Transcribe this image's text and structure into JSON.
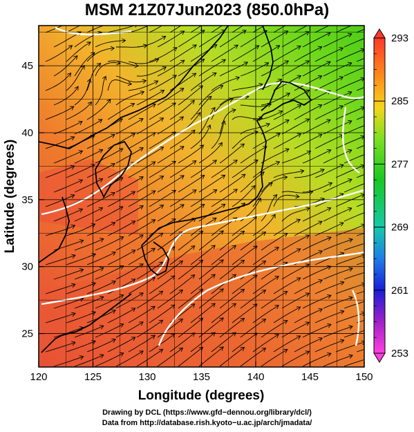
{
  "title": "MSM 21Z07Jun2023 (850.0hPa)",
  "map": {
    "lon_range": [
      120,
      150
    ],
    "lat_range": [
      22.5,
      48
    ],
    "xlabel": "Longitude (degrees)",
    "ylabel": "Latitude  (degrees)",
    "x_ticks": [
      "120",
      "125",
      "130",
      "135",
      "140",
      "145",
      "150"
    ],
    "y_ticks": [
      "25",
      "30",
      "35",
      "40",
      "45"
    ],
    "grid": true,
    "field": "temperature shaded with streamlines",
    "colors": {
      "high": "#e5413a",
      "mid": "#f0a028",
      "low_mid": "#9be31e",
      "low": "#43cd14",
      "coastline": "#000000",
      "contour": "#ffffff"
    }
  },
  "colorbar": {
    "labels": [
      "293",
      "285",
      "277",
      "269",
      "261",
      "253"
    ],
    "range": [
      253,
      293
    ],
    "colors": [
      "#ff3a2a",
      "#ff8a1a",
      "#f6d51a",
      "#7de020",
      "#18c822",
      "#16c9a9",
      "#1f7ee8",
      "#1a1ed8",
      "#a020c8",
      "#ff40e0"
    ]
  },
  "credit": {
    "line1": "Drawing by DCL (https://www.gfd−dennou.org/library/dcl/)",
    "line2": "Data from http://database.rish.kyoto−u.ac.jp/arch/jmadata/"
  }
}
